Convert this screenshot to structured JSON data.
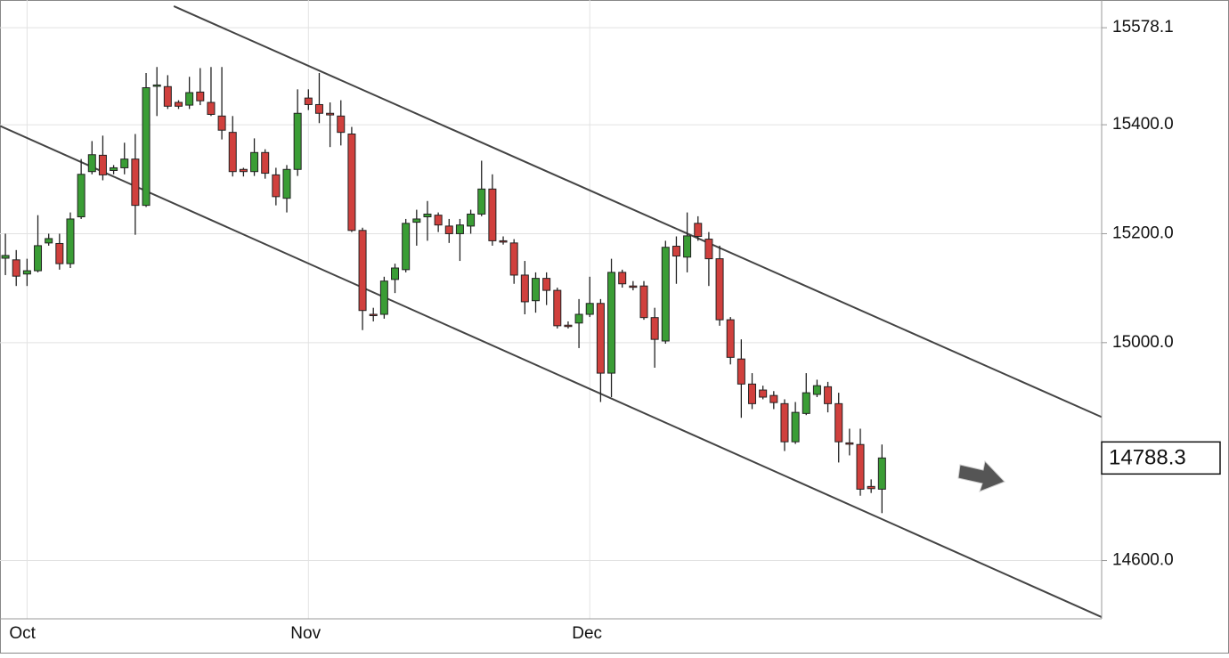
{
  "chart_data": {
    "type": "candlestick",
    "categories": [
      null,
      null,
      "Oct",
      null,
      null,
      null,
      null,
      null,
      null,
      null,
      null,
      null,
      null,
      null,
      null,
      null,
      null,
      null,
      null,
      null,
      null,
      null,
      null,
      null,
      null,
      null,
      null,
      null,
      "Nov",
      null,
      null,
      null,
      null,
      null,
      null,
      null,
      null,
      null,
      null,
      null,
      null,
      null,
      null,
      null,
      null,
      null,
      null,
      null,
      null,
      null,
      null,
      null,
      null,
      null,
      "Dec",
      null,
      null,
      null,
      null,
      null,
      null,
      null,
      null,
      null,
      null,
      null,
      null,
      null,
      null,
      null,
      null,
      null,
      null,
      null,
      null,
      null,
      null,
      null,
      null,
      null,
      null,
      null
    ],
    "open": [
      15155,
      15152,
      15126,
      15132,
      15183,
      15182,
      15145,
      15231,
      15314,
      15344,
      15316,
      15321,
      15337,
      15252,
      15472,
      15470,
      15441,
      15436,
      15460,
      15441,
      15416,
      15386,
      15318,
      15314,
      15349,
      15308,
      15265,
      15318,
      15449,
      15437,
      15421,
      15416,
      15383,
      15206,
      15052,
      15052,
      15116,
      15134,
      15221,
      15231,
      15234,
      15214,
      15200,
      15214,
      15236,
      15282,
      15187,
      15183,
      15124,
      15077,
      15118,
      15096,
      15032,
      15036,
      15052,
      15072,
      14944,
      15129,
      15104,
      15104,
      15046,
      15003,
      15177,
      15157,
      15219,
      15190,
      15154,
      15042,
      14970,
      14924,
      14913,
      14903,
      14888,
      14818,
      14870,
      14905,
      14919,
      14888,
      14816,
      14813,
      14736,
      14731
    ],
    "high": [
      15200,
      15170,
      15154,
      15234,
      15200,
      15200,
      15239,
      15337,
      15370,
      15380,
      15326,
      15367,
      15383,
      15495,
      15506,
      15491,
      15445,
      15488,
      15504,
      15506,
      15506,
      15416,
      15321,
      15375,
      15355,
      15321,
      15326,
      15465,
      15465,
      15495,
      15441,
      15445,
      15396,
      15211,
      15064,
      15121,
      15145,
      15227,
      15244,
      15260,
      15239,
      15227,
      15227,
      15244,
      15334,
      15309,
      15195,
      15190,
      15150,
      15129,
      15129,
      15101,
      15039,
      15080,
      15121,
      15080,
      15154,
      15134,
      15113,
      15113,
      15064,
      15187,
      15195,
      15239,
      15232,
      15203,
      15178,
      15047,
      15006,
      14944,
      14921,
      14911,
      14896,
      14891,
      14944,
      14932,
      14928,
      14908,
      14842,
      14842,
      14749,
      14813
    ],
    "low": [
      15124,
      15104,
      15104,
      15129,
      15178,
      15134,
      15137,
      15227,
      15309,
      15298,
      15309,
      15309,
      15198,
      15249,
      15416,
      15429,
      15429,
      15429,
      15436,
      15416,
      15373,
      15305,
      15305,
      15306,
      15301,
      15252,
      15239,
      15306,
      15427,
      15403,
      15359,
      15362,
      15203,
      15023,
      15039,
      15044,
      15091,
      15129,
      15178,
      15187,
      15203,
      15183,
      15150,
      15200,
      15232,
      15178,
      15180,
      15108,
      15052,
      15055,
      15069,
      15026,
      15026,
      14990,
      15047,
      14891,
      14900,
      15101,
      15096,
      15042,
      14954,
      14998,
      15108,
      15129,
      15187,
      15104,
      15031,
      14960,
      14862,
      14878,
      14896,
      14878,
      14801,
      14814,
      14867,
      14900,
      14872,
      14780,
      14793,
      14719,
      14724,
      14687
    ],
    "close": [
      15160,
      15122,
      15132,
      15178,
      15191,
      15145,
      15227,
      15309,
      15345,
      15308,
      15321,
      15337,
      15252,
      15468,
      15473,
      15434,
      15434,
      15459,
      15444,
      15419,
      15390,
      15314,
      15314,
      15349,
      15311,
      15268,
      15318,
      15421,
      15437,
      15421,
      15418,
      15386,
      15206,
      15059,
      15050,
      15113,
      15137,
      15219,
      15227,
      15236,
      15216,
      15200,
      15216,
      15236,
      15282,
      15187,
      15185,
      15124,
      15075,
      15118,
      15096,
      15031,
      15031,
      15052,
      15072,
      14944,
      15129,
      15108,
      15103,
      15046,
      15006,
      15175,
      15159,
      15196,
      15195,
      15154,
      15042,
      14973,
      14924,
      14888,
      14900,
      14890,
      14818,
      14872,
      14908,
      14921,
      14888,
      14818,
      14814,
      14731,
      14732,
      14788.3
    ],
    "up_color": "#3a9d35",
    "down_color": "#d0403d",
    "xlim": [
      -0.5,
      101.3
    ],
    "ylim": [
      14493,
      15629
    ],
    "yticks": [
      {
        "value": 14600,
        "label": "14600.0"
      },
      {
        "value": 15000,
        "label": "15000.0"
      },
      {
        "value": 15200,
        "label": "15200.0"
      },
      {
        "value": 15400,
        "label": "15400.0"
      },
      15578.1
    ],
    "grid": true,
    "last_value": 14788.3,
    "lines": [
      {
        "x": [
          15.56,
          101.3
        ],
        "values": [
          15617.6,
          14863.4
        ]
      },
      {
        "x": [
          -0.5,
          101.3
        ],
        "values": [
          15397.8,
          14496.2
        ]
      }
    ]
  }
}
